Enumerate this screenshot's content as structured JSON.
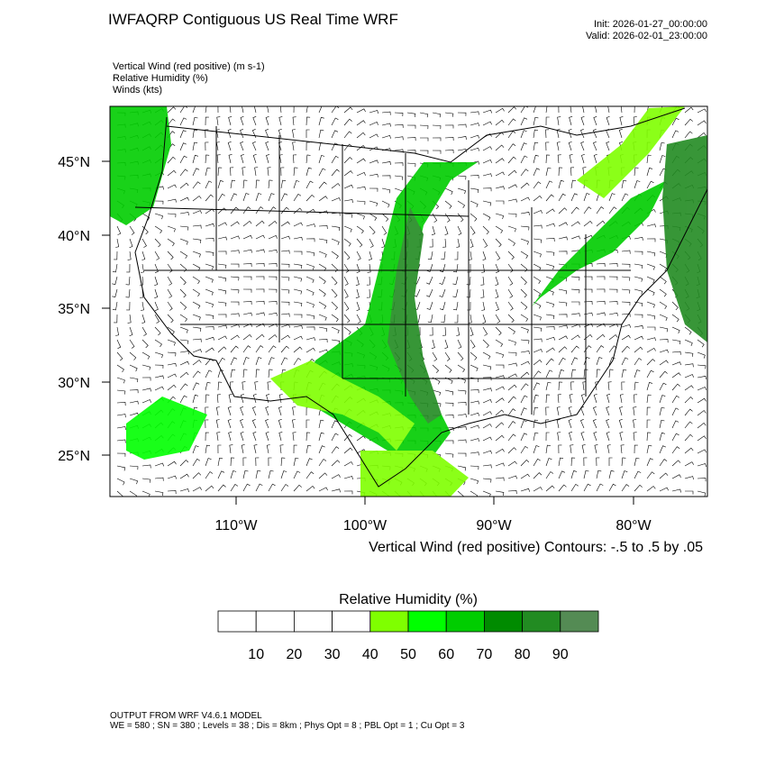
{
  "header": {
    "title": "IWFAQRP Contiguous US Real Time WRF",
    "init": "Init: 2026-01-27_00:00:00",
    "valid": "Valid: 2026-02-01_23:00:00"
  },
  "fields": [
    "Vertical Wind (red positive)   (m s-1)",
    "Relative Humidity   (%)",
    "Winds   (kts)"
  ],
  "map": {
    "lat_labels": [
      "45°N",
      "40°N",
      "35°N",
      "30°N",
      "25°N"
    ],
    "lon_labels": [
      "110°W",
      "100°W",
      "90°W",
      "80°W"
    ],
    "contour_note": "Vertical Wind (red positive) Contours: -.5 to .5 by .05"
  },
  "colorbar": {
    "title": "Relative Humidity  (%)",
    "labels": [
      "10",
      "20",
      "30",
      "40",
      "50",
      "60",
      "70",
      "80",
      "90"
    ],
    "colors": [
      "#ffffff",
      "#ffffff",
      "#ffffff",
      "#ffffff",
      "#7fff00",
      "#00ff00",
      "#00cd00",
      "#008b00",
      "#228b22",
      "#548b54"
    ]
  },
  "footer": [
    "OUTPUT FROM WRF V4.6.1 MODEL",
    "WE = 580 ; SN = 380 ; Levels = 38 ; Dis = 8km ; Phys Opt = 8 ; PBL Opt = 1 ; Cu Opt = 3"
  ]
}
